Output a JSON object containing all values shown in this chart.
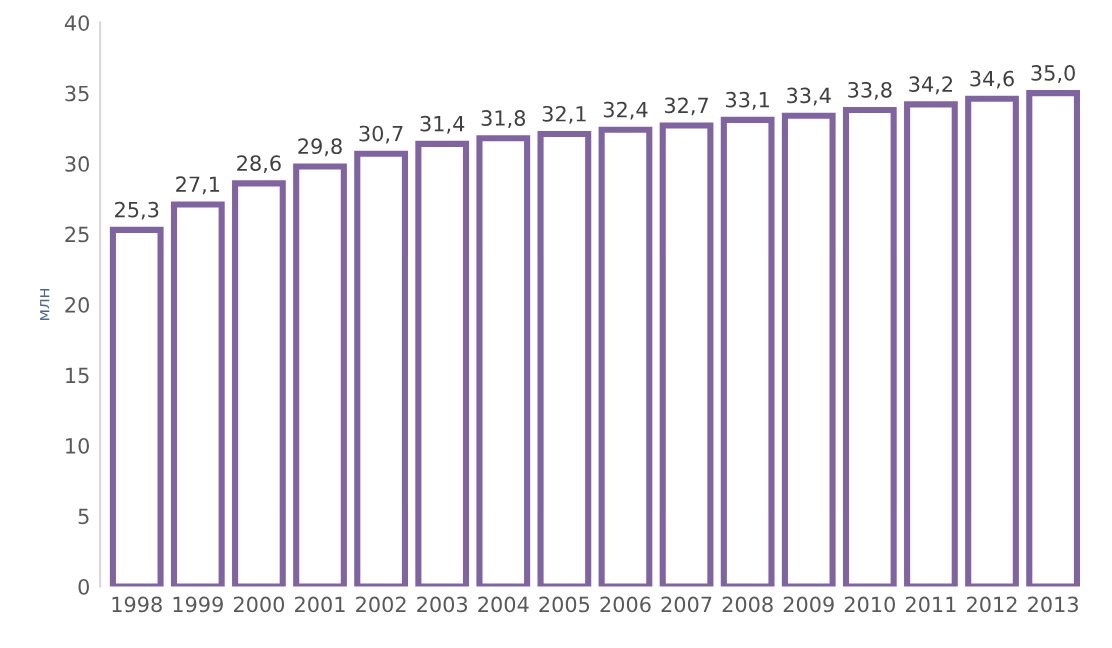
{
  "chart_data": {
    "type": "bar",
    "ylabel": "млн",
    "categories": [
      "1998",
      "1999",
      "2000",
      "2001",
      "2002",
      "2003",
      "2004",
      "2005",
      "2006",
      "2007",
      "2008",
      "2009",
      "2010",
      "2011",
      "2012",
      "2013"
    ],
    "values": [
      25.3,
      27.1,
      28.6,
      29.8,
      30.7,
      31.4,
      31.8,
      32.1,
      32.4,
      32.7,
      33.1,
      33.4,
      33.8,
      34.2,
      34.6,
      35.0
    ],
    "value_labels": [
      "25,3",
      "27,1",
      "28,6",
      "29,8",
      "30,7",
      "31,4",
      "31,8",
      "32,1",
      "32,4",
      "32,7",
      "33,1",
      "33,4",
      "33,8",
      "34,2",
      "34,6",
      "35,0"
    ],
    "color": "#8064a2",
    "ylim": [
      0,
      40
    ],
    "yticks": [
      0,
      5,
      10,
      15,
      20,
      25,
      30,
      35,
      40
    ],
    "grid": false,
    "legend": false
  }
}
